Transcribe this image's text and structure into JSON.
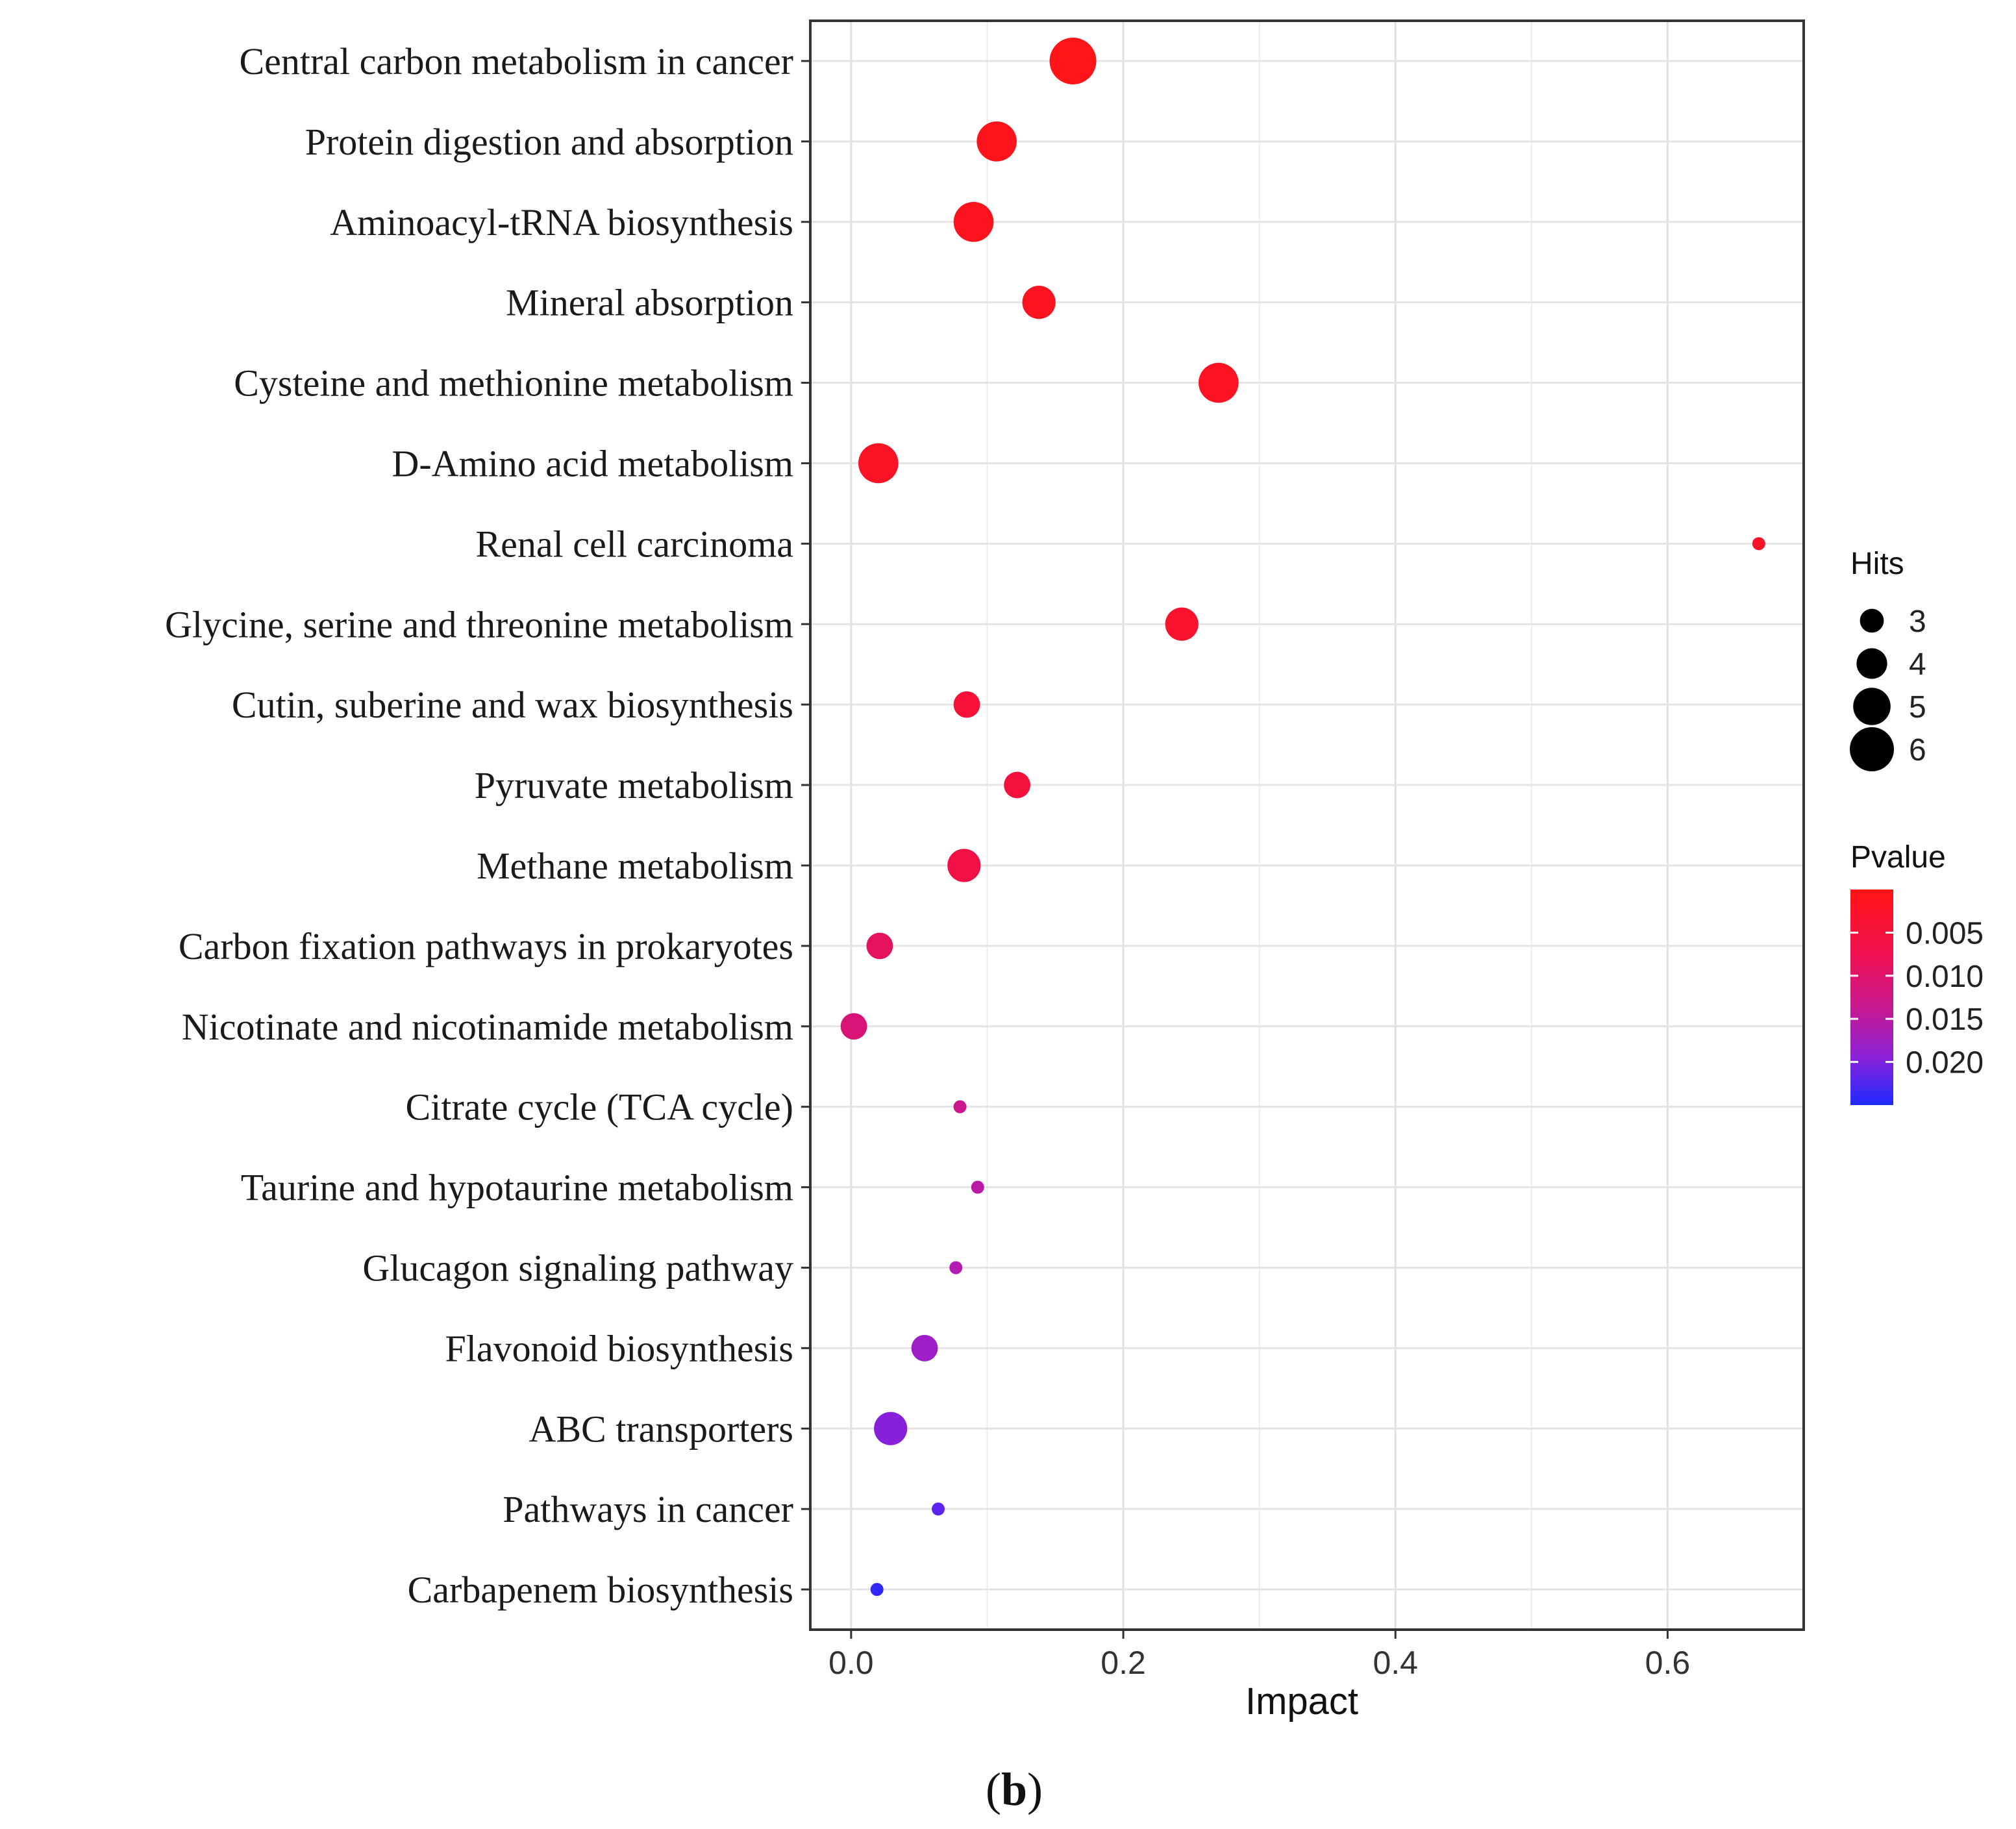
{
  "chart_data": {
    "type": "scatter",
    "subtype": "bubble",
    "xlabel": "Impact",
    "ylabel": "",
    "xlim": [
      -0.03,
      0.7
    ],
    "xticks": [
      0.0,
      0.2,
      0.4,
      0.6
    ],
    "xtick_labels": [
      "0.0",
      "0.2",
      "0.4",
      "0.6"
    ],
    "grid": true,
    "legend_placement": "right",
    "categories": [
      "Central carbon metabolism in cancer",
      "Protein digestion and absorption",
      "Aminoacyl-tRNA biosynthesis",
      "Mineral absorption",
      "Cysteine and methionine metabolism",
      "D-Amino acid metabolism",
      "Renal cell carcinoma",
      "Glycine, serine and threonine metabolism",
      "Cutin, suberine and wax biosynthesis",
      "Pyruvate metabolism",
      "Methane metabolism",
      "Carbon fixation pathways in prokaryotes",
      "Nicotinate and nicotinamide metabolism",
      "Citrate cycle (TCA cycle)",
      "Taurine and hypotaurine metabolism",
      "Glucagon signaling pathway",
      "Flavonoid biosynthesis",
      "ABC transporters",
      "Pathways in cancer",
      "Carbapenem biosynthesis"
    ],
    "points": [
      {
        "name": "Central carbon metabolism in cancer",
        "impact": 0.163,
        "hits": 6,
        "pvalue": 0.0005
      },
      {
        "name": "Protein digestion and absorption",
        "impact": 0.107,
        "hits": 5,
        "pvalue": 0.0007
      },
      {
        "name": "Aminoacyl-tRNA biosynthesis",
        "impact": 0.09,
        "hits": 5,
        "pvalue": 0.001
      },
      {
        "name": "Mineral absorption",
        "impact": 0.138,
        "hits": 4,
        "pvalue": 0.0012
      },
      {
        "name": "Cysteine and methionine metabolism",
        "impact": 0.27,
        "hits": 5,
        "pvalue": 0.0015
      },
      {
        "name": "D-Amino acid metabolism",
        "impact": 0.02,
        "hits": 5,
        "pvalue": 0.0017
      },
      {
        "name": "Renal cell carcinoma",
        "impact": 0.667,
        "hits": 1,
        "pvalue": 0.0018
      },
      {
        "name": "Glycine, serine and threonine metabolism",
        "impact": 0.243,
        "hits": 4,
        "pvalue": 0.0025
      },
      {
        "name": "Cutin, suberine and wax biosynthesis",
        "impact": 0.085,
        "hits": 3,
        "pvalue": 0.0035
      },
      {
        "name": "Pyruvate metabolism",
        "impact": 0.122,
        "hits": 3,
        "pvalue": 0.004
      },
      {
        "name": "Methane metabolism",
        "impact": 0.083,
        "hits": 4,
        "pvalue": 0.005
      },
      {
        "name": "Carbon fixation pathways in prokaryotes",
        "impact": 0.021,
        "hits": 3,
        "pvalue": 0.007
      },
      {
        "name": "Nicotinate and nicotinamide metabolism",
        "impact": 0.002,
        "hits": 3,
        "pvalue": 0.009
      },
      {
        "name": "Citrate cycle (TCA cycle)",
        "impact": 0.08,
        "hits": 1,
        "pvalue": 0.011
      },
      {
        "name": "Taurine and hypotaurine metabolism",
        "impact": 0.093,
        "hits": 1,
        "pvalue": 0.013
      },
      {
        "name": "Glucagon signaling pathway",
        "impact": 0.077,
        "hits": 1,
        "pvalue": 0.014
      },
      {
        "name": "Flavonoid biosynthesis",
        "impact": 0.054,
        "hits": 3,
        "pvalue": 0.016
      },
      {
        "name": "ABC transporters",
        "impact": 0.029,
        "hits": 4,
        "pvalue": 0.018
      },
      {
        "name": "Pathways in cancer",
        "impact": 0.064,
        "hits": 1,
        "pvalue": 0.021
      },
      {
        "name": "Carbapenem biosynthesis",
        "impact": 0.019,
        "hits": 1,
        "pvalue": 0.024
      }
    ],
    "size_legend": {
      "title": "Hits",
      "values": [
        3,
        4,
        5,
        6
      ],
      "labels": [
        "3",
        "4",
        "5",
        "6"
      ]
    },
    "color_legend": {
      "title": "Pvalue",
      "range": [
        0.0,
        0.025
      ],
      "ticks": [
        0.005,
        0.01,
        0.015,
        0.02
      ],
      "tick_labels": [
        "0.005",
        "0.010",
        "0.015",
        "0.020"
      ],
      "colors": {
        "low": "#ff1010",
        "mid": "#b020c0",
        "high": "#2020ff"
      }
    },
    "panel_label": {
      "open": "(",
      "letter": "b",
      "close": ")"
    }
  }
}
